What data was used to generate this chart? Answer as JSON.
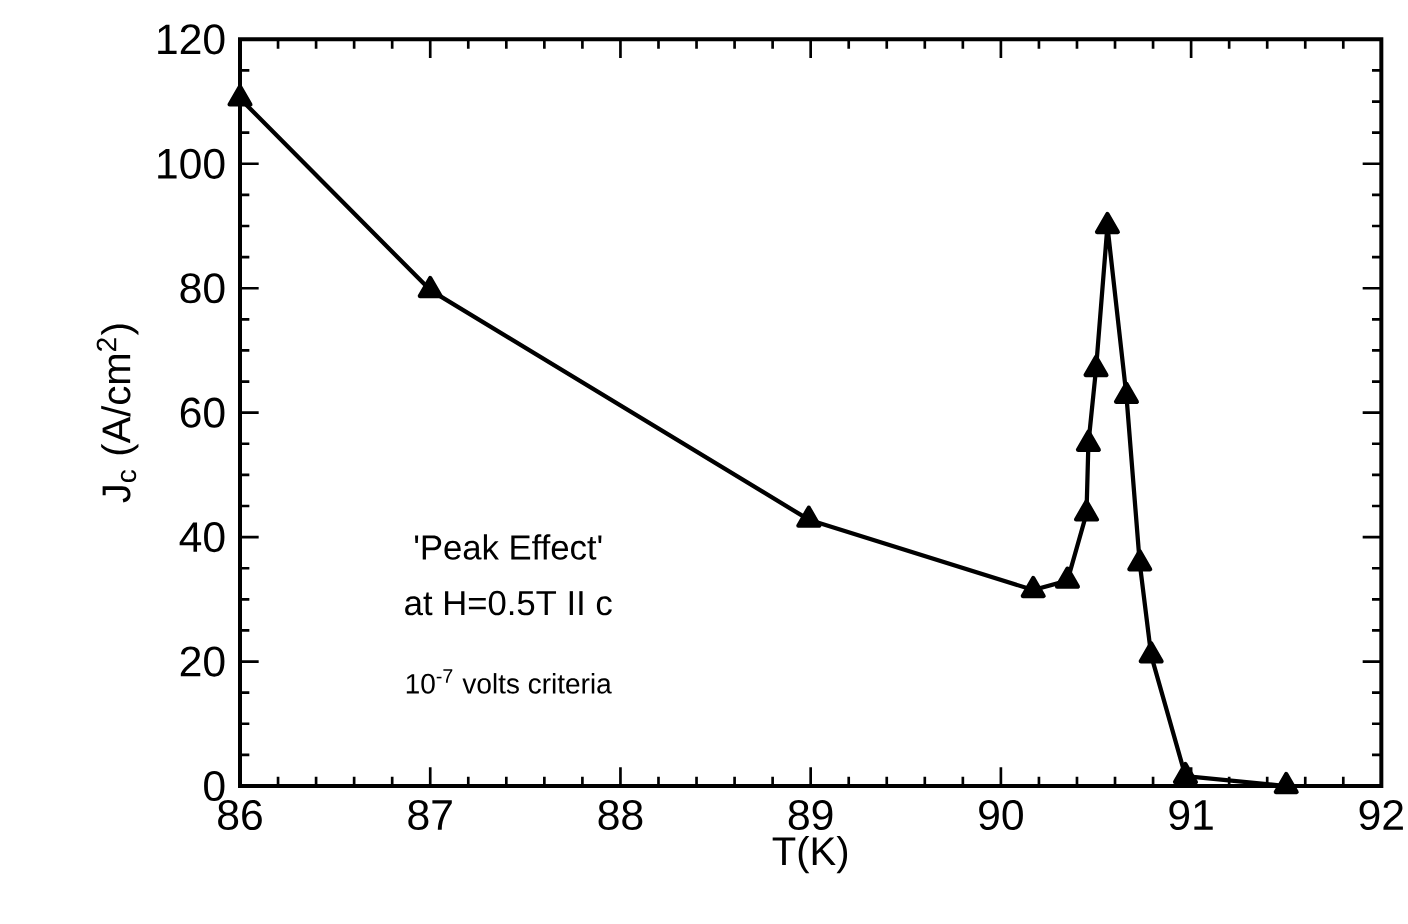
{
  "chart_data": {
    "type": "line",
    "xlabel": "T(K)",
    "ylabel": "J$_{c}$ (A/cm$^{2}$)",
    "x": [
      86,
      87,
      88.99,
      90.17,
      90.35,
      90.45,
      90.46,
      90.5,
      90.56,
      90.66,
      90.73,
      90.79,
      90.97,
      91.5
    ],
    "values": [
      110.5,
      79.7,
      42.8,
      31.5,
      33,
      43.8,
      55,
      67,
      90,
      62.7,
      35.8,
      21,
      1.6,
      0
    ],
    "color": "#000000",
    "marker": "triangle",
    "line_style": "solid",
    "xlim": [
      86,
      92
    ],
    "ylim": [
      0,
      120
    ],
    "xticks": [
      86,
      87,
      88,
      89,
      90,
      91,
      92
    ],
    "yticks": [
      0,
      20,
      40,
      60,
      80,
      100,
      120
    ],
    "annotations": [
      "'Peak Effect'",
      "at H=0.5T II c",
      "10$^{-7}$ volts criteria"
    ]
  }
}
